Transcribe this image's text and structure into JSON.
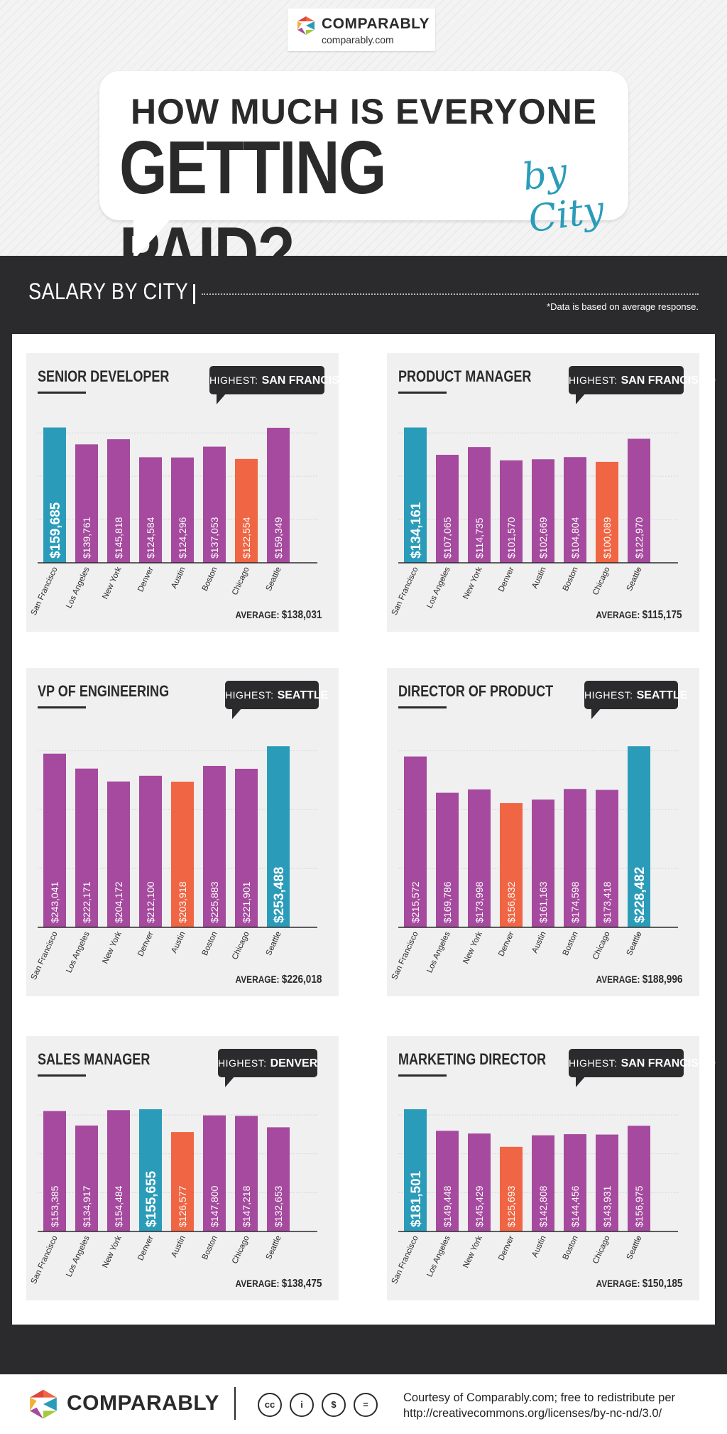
{
  "header": {
    "brand": "COMPARABLY",
    "url": "comparably.com",
    "title_line1": "HOW MUCH IS EVERYONE",
    "title_line2": "GETTING PAID?",
    "title_suffix": "by City"
  },
  "section": {
    "title": "SALARY BY CITY",
    "note": "*Data is based on average response."
  },
  "colors": {
    "dark": "#2b2b2d",
    "purple": "#a54a9e",
    "teal": "#2a9cb9",
    "orange": "#f06543",
    "card_bg": "#f0f0f0"
  },
  "highest_label": "HIGHEST:",
  "average_label": "AVERAGE:",
  "footer": {
    "brand": "COMPARABLY",
    "credit_line1": "Courtesy of Comparably.com; free to redistribute per",
    "credit_line2": "http://creativecommons.org/licenses/by-nc-nd/3.0/",
    "license_icons": [
      "cc-icon",
      "by-icon",
      "nc-icon",
      "nd-icon"
    ],
    "license_glyphs": [
      "cc",
      "i",
      "$",
      "="
    ]
  },
  "chart_data": [
    {
      "type": "bar",
      "title": "SENIOR DEVELOPER",
      "highest": "SAN FRANCISCO",
      "average": "$138,031",
      "categories": [
        "San Francisco",
        "Los Angeles",
        "New York",
        "Denver",
        "Austin",
        "Boston",
        "Chicago",
        "Seattle"
      ],
      "values": [
        159685,
        139761,
        145818,
        124584,
        124296,
        137053,
        122554,
        159349
      ],
      "labels": [
        "$159,685",
        "$139,761",
        "$145,818",
        "$124,584",
        "$124,296",
        "$137,053",
        "$122,554",
        "$159,349"
      ],
      "highest_index": 0,
      "lowest_index": 6
    },
    {
      "type": "bar",
      "title": "PRODUCT MANAGER",
      "highest": "SAN FRANCISCO",
      "average": "$115,175",
      "categories": [
        "San Francisco",
        "Los Angeles",
        "New York",
        "Denver",
        "Austin",
        "Boston",
        "Chicago",
        "Seattle"
      ],
      "values": [
        134161,
        107065,
        114735,
        101570,
        102669,
        104804,
        100089,
        122970
      ],
      "labels": [
        "$134,161",
        "$107,065",
        "$114,735",
        "$101,570",
        "$102,669",
        "$104,804",
        "$100,089",
        "$122,970"
      ],
      "highest_index": 0,
      "lowest_index": 6
    },
    {
      "type": "bar",
      "title": "VP OF ENGINEERING",
      "highest": "SEATTLE",
      "average": "$226,018",
      "categories": [
        "San Francisco",
        "Los Angeles",
        "New York",
        "Denver",
        "Austin",
        "Boston",
        "Chicago",
        "Seattle"
      ],
      "values": [
        243041,
        222171,
        204172,
        212100,
        203918,
        225883,
        221901,
        253488
      ],
      "labels": [
        "$243,041",
        "$222,171",
        "$204,172",
        "$212,100",
        "$203,918",
        "$225,883",
        "$221,901",
        "$253,488"
      ],
      "highest_index": 7,
      "lowest_index": 4
    },
    {
      "type": "bar",
      "title": "DIRECTOR OF PRODUCT",
      "highest": "SEATTLE",
      "average": "$188,996",
      "categories": [
        "San Francisco",
        "Los Angeles",
        "New York",
        "Denver",
        "Austin",
        "Boston",
        "Chicago",
        "Seattle"
      ],
      "values": [
        215572,
        169786,
        173998,
        156832,
        161163,
        174598,
        173418,
        228482
      ],
      "labels": [
        "$215,572",
        "$169,786",
        "$173,998",
        "$156,832",
        "$161,163",
        "$174,598",
        "$173,418",
        "$228,482"
      ],
      "highest_index": 7,
      "lowest_index": 3
    },
    {
      "type": "bar",
      "title": "SALES MANAGER",
      "highest": "DENVER",
      "average": "$138,475",
      "categories": [
        "San Francisco",
        "Los Angeles",
        "New York",
        "Denver",
        "Austin",
        "Boston",
        "Chicago",
        "Seattle"
      ],
      "values": [
        153385,
        134917,
        154484,
        155655,
        126577,
        147800,
        147218,
        132653
      ],
      "labels": [
        "$153,385",
        "$134,917",
        "$154,484",
        "$155,655",
        "$126,577",
        "$147,800",
        "$147,218",
        "$132,653"
      ],
      "highest_index": 3,
      "lowest_index": 4
    },
    {
      "type": "bar",
      "title": "MARKETING DIRECTOR",
      "highest": "SAN FRANCISCO",
      "average": "$150,185",
      "categories": [
        "San Francisco",
        "Los Angeles",
        "New York",
        "Denver",
        "Austin",
        "Boston",
        "Chicago",
        "Seattle"
      ],
      "values": [
        181501,
        149448,
        145429,
        125693,
        142808,
        144456,
        143931,
        156975
      ],
      "labels": [
        "$181,501",
        "$149,448",
        "$145,429",
        "$125,693",
        "$142,808",
        "$144,456",
        "$143,931",
        "$156,975"
      ],
      "highest_index": 0,
      "lowest_index": 3
    }
  ]
}
